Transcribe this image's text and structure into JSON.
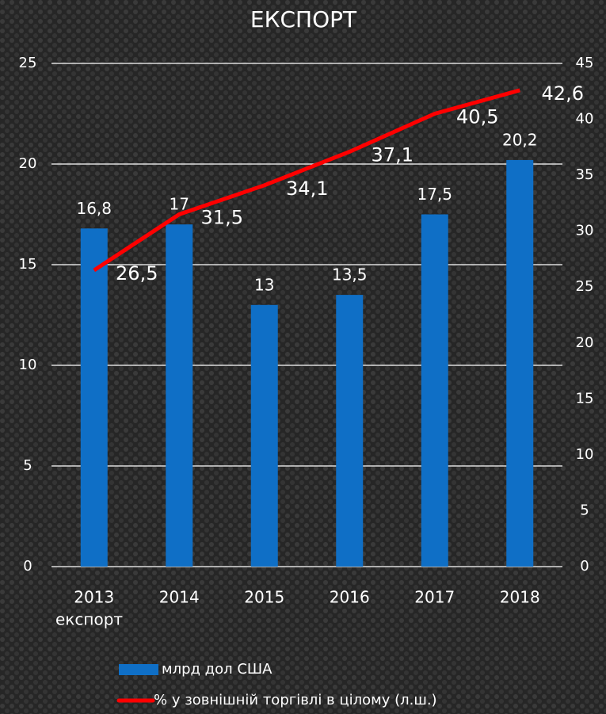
{
  "chart_data": {
    "type": "combo",
    "title": "ЕКСПОРТ",
    "x_label": "експорт",
    "categories": [
      "2013",
      "2014",
      "2015",
      "2016",
      "2017",
      "2018"
    ],
    "series": [
      {
        "name": "млрд дол США",
        "type": "bar",
        "color": "#0f6fc6",
        "values": [
          16.8,
          17,
          13,
          13.5,
          17.5,
          20.2
        ],
        "value_labels": [
          "16,8",
          "17",
          "13",
          "13,5",
          "17,5",
          "20,2"
        ]
      },
      {
        "name": "% у зовнішній торгівлі в цілому (л.ш.)",
        "type": "line",
        "axis": "y2",
        "color": "#ff0000",
        "values": [
          26.5,
          31.5,
          34.1,
          37.1,
          40.5,
          42.6
        ],
        "value_labels": [
          "26,5",
          "31,5",
          "34,1",
          "37,1",
          "40,5",
          "42,6"
        ]
      }
    ],
    "ylim": [
      0,
      25
    ],
    "yticks": [
      0,
      5,
      10,
      15,
      20,
      25
    ],
    "y2lim": [
      0,
      45
    ],
    "y2ticks": [
      0,
      5,
      10,
      15,
      20,
      25,
      30,
      35,
      40,
      45
    ],
    "grid": true,
    "legend": "bottom"
  }
}
